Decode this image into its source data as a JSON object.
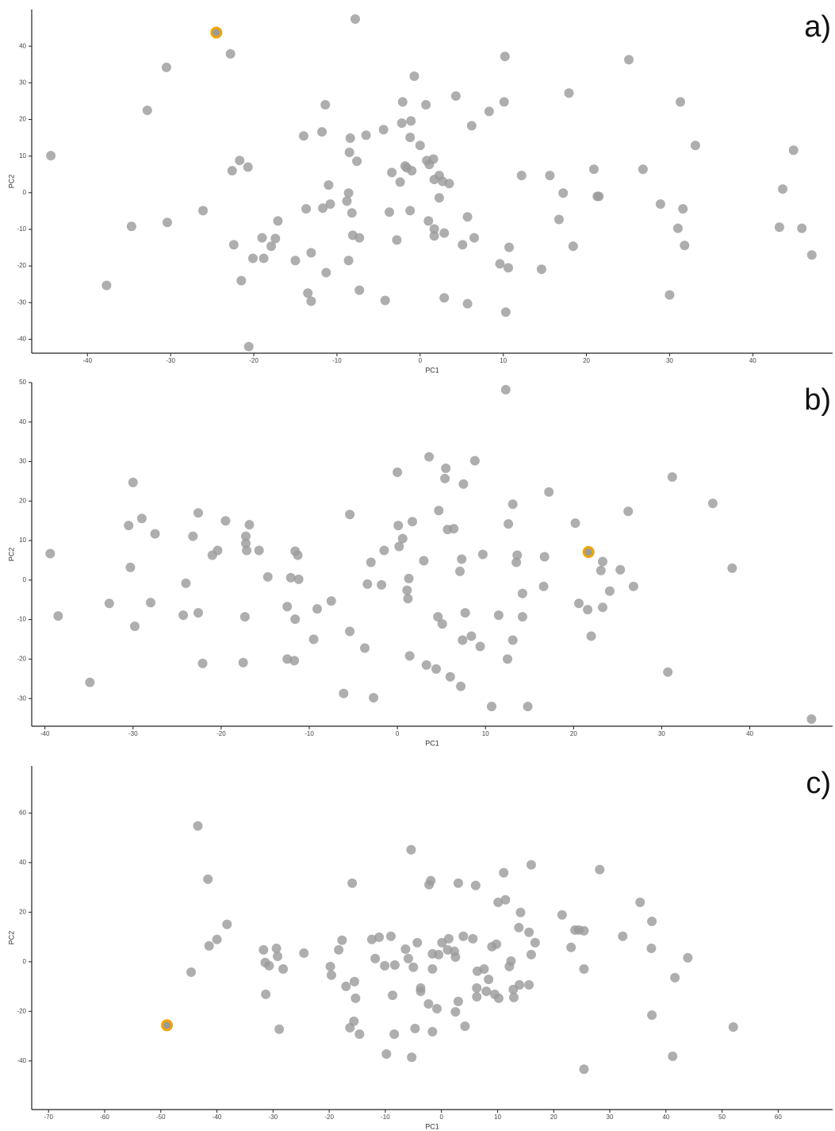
{
  "chart_data": [
    {
      "type": "scatter",
      "label": "a)",
      "x_label": "PC1",
      "y_label": "PC2",
      "xlim": [
        -46.7,
        49.6
      ],
      "ylim": [
        -43.8,
        50
      ],
      "xticks": [
        -40,
        -30,
        -20,
        -10,
        0,
        10,
        20,
        30,
        40
      ],
      "yticks": [
        -40,
        -30,
        -20,
        -10,
        0,
        10,
        20,
        30,
        40
      ],
      "series": [
        {
          "color": "#9a9a9a",
          "x": [
            -44.4,
            -37.7,
            -34.7,
            -32.8,
            -30.5,
            -30.4,
            -26.1,
            -22.8,
            -22.6,
            -22.4,
            -21.7,
            -21.5,
            -20.7,
            -20.6,
            -20.1,
            -19.0,
            -18.8,
            -17.9,
            -17.4,
            -17.1,
            -15.0,
            -14.0,
            -13.7,
            -13.5,
            -13.1,
            -13.1,
            -11.8,
            -11.7,
            -11.4,
            -11.3,
            -11.0,
            -10.8,
            -8.8,
            -8.6,
            -8.5,
            -8.4,
            -8.6,
            -8.2,
            -8.1,
            -7.8,
            -7.6,
            -7.3,
            -7.3,
            -6.5,
            -4.4,
            -4.2,
            -3.7,
            -3.4,
            -2.8,
            -2.4,
            -2.2,
            -2.1,
            -1.8,
            -1.6,
            -1.2,
            -1.1,
            -1.2,
            -1.0,
            -0.7,
            0.0,
            0.7,
            0.8,
            1.0,
            1.1,
            1.6,
            1.7,
            1.7,
            1.7,
            2.3,
            2.3,
            2.7,
            2.9,
            2.9,
            3.5,
            4.3,
            5.1,
            5.7,
            5.7,
            6.2,
            6.5,
            8.3,
            9.6,
            10.1,
            10.2,
            10.3,
            10.6,
            10.7,
            12.2,
            14.6,
            15.6,
            16.7,
            17.2,
            17.9,
            18.4,
            20.9,
            21.3,
            21.5,
            25.1,
            26.8,
            28.9,
            30.0,
            31.0,
            31.3,
            31.6,
            31.8,
            33.1,
            43.2,
            43.6,
            44.9,
            45.9,
            47.1
          ],
          "values": [
            10.1,
            -25.3,
            -9.2,
            22.5,
            34.2,
            -8.1,
            -4.9,
            37.9,
            6.0,
            -14.2,
            8.8,
            -24.0,
            7.0,
            -42.0,
            -17.9,
            -12.3,
            -17.9,
            -14.6,
            -12.5,
            -7.7,
            -18.5,
            15.5,
            -4.4,
            -27.4,
            -29.6,
            -16.4,
            16.6,
            -4.2,
            24.0,
            -21.8,
            2.1,
            -3.1,
            -2.3,
            -0.1,
            11.0,
            14.9,
            -18.5,
            -5.5,
            -11.6,
            47.4,
            8.6,
            -12.3,
            -26.6,
            15.7,
            17.2,
            -29.4,
            -5.3,
            5.5,
            -12.9,
            2.9,
            19.0,
            24.8,
            7.3,
            6.8,
            -4.9,
            19.6,
            15.1,
            6.0,
            31.8,
            12.9,
            24.0,
            8.8,
            -7.7,
            7.7,
            9.2,
            3.6,
            -9.9,
            -11.8,
            4.7,
            -1.4,
            3.1,
            -11.0,
            -28.7,
            2.5,
            26.4,
            -14.2,
            -6.6,
            -30.3,
            18.3,
            -12.3,
            22.2,
            -19.4,
            24.8,
            37.2,
            -32.6,
            -20.5,
            -14.9,
            4.7,
            -20.9,
            4.7,
            -7.3,
            -0.1,
            27.2,
            -14.6,
            6.4,
            -1.0,
            -1.0,
            36.3,
            6.4,
            -3.1,
            -27.9,
            -9.7,
            24.8,
            -4.4,
            -14.4,
            12.9,
            -9.4,
            1.0,
            11.6,
            -9.7,
            -17.0
          ]
        },
        {
          "color": "#9a9a9a",
          "edgecolor": "#f0a500",
          "x": [
            -24.5
          ],
          "values": [
            43.7
          ]
        }
      ]
    },
    {
      "type": "scatter",
      "label": "b)",
      "x_label": "PC1",
      "y_label": "PC2",
      "xlim": [
        -41.5,
        49.4
      ],
      "ylim": [
        -37,
        50
      ],
      "xticks": [
        -40,
        -30,
        -20,
        -10,
        0,
        10,
        20,
        30,
        40
      ],
      "yticks": [
        -30,
        -20,
        -10,
        0,
        10,
        20,
        30,
        40,
        50
      ],
      "series": [
        {
          "color": "#9a9a9a",
          "x": [
            -39.4,
            -38.5,
            -34.9,
            -32.7,
            -30.5,
            -30.3,
            -30.0,
            -29.8,
            -29.0,
            -28.0,
            -27.5,
            -24.3,
            -24.0,
            -23.2,
            -22.6,
            -22.6,
            -22.1,
            -21.0,
            -20.4,
            -19.5,
            -17.5,
            -17.3,
            -17.2,
            -17.2,
            -17.1,
            -16.8,
            -15.7,
            -14.7,
            -12.5,
            -12.5,
            -12.1,
            -11.7,
            -11.6,
            -11.6,
            -11.3,
            -11.2,
            -9.5,
            -9.1,
            -7.5,
            -6.1,
            -5.4,
            -5.4,
            -3.7,
            -3.4,
            -3.0,
            -2.7,
            -1.8,
            -1.5,
            0.0,
            0.1,
            0.2,
            0.6,
            1.1,
            1.2,
            1.3,
            1.4,
            1.7,
            3.0,
            3.3,
            3.6,
            4.4,
            4.6,
            4.7,
            5.1,
            5.4,
            5.5,
            5.7,
            6.0,
            6.4,
            7.1,
            7.2,
            7.3,
            7.4,
            7.5,
            7.7,
            8.4,
            8.8,
            9.4,
            9.7,
            10.7,
            11.5,
            12.3,
            12.5,
            12.6,
            13.1,
            13.1,
            13.5,
            13.6,
            14.2,
            14.2,
            14.8,
            16.6,
            16.7,
            17.2,
            20.2,
            20.6,
            21.6,
            22.0,
            23.1,
            23.3,
            23.3,
            24.1,
            25.3,
            26.2,
            26.8,
            30.7,
            31.2,
            35.8,
            38.0,
            47.0
          ],
          "values": [
            6.7,
            -9.1,
            -25.9,
            -5.9,
            13.8,
            3.2,
            24.7,
            -11.7,
            15.6,
            -5.7,
            11.7,
            -8.9,
            -0.8,
            11.1,
            17.0,
            -8.3,
            -21.1,
            6.3,
            7.5,
            15.0,
            -20.9,
            -9.3,
            11.1,
            9.3,
            7.5,
            14.0,
            7.5,
            0.8,
            -6.7,
            -20.0,
            0.6,
            -20.4,
            7.3,
            -9.9,
            6.3,
            0.2,
            -15.0,
            -7.3,
            -5.3,
            -28.7,
            -13.0,
            16.6,
            -17.2,
            -1.0,
            4.5,
            -29.8,
            -1.2,
            7.5,
            27.3,
            13.8,
            8.5,
            10.5,
            -2.6,
            -4.7,
            0.4,
            -19.2,
            14.8,
            4.9,
            -21.5,
            31.2,
            -22.5,
            -9.3,
            17.6,
            -11.1,
            25.7,
            28.3,
            12.8,
            -24.5,
            13.0,
            2.2,
            -26.9,
            5.3,
            -15.2,
            24.3,
            -8.3,
            -14.2,
            30.2,
            -16.8,
            6.5,
            -32.0,
            -8.9,
            48.2,
            -20.0,
            14.2,
            -15.2,
            19.2,
            4.5,
            6.3,
            -9.3,
            -3.4,
            -32.0,
            -1.6,
            5.9,
            22.3,
            14.4,
            -5.9,
            -7.5,
            -14.2,
            2.4,
            4.7,
            -6.9,
            -2.8,
            2.6,
            17.4,
            -1.6,
            -23.3,
            26.1,
            19.4,
            3.0,
            -35.2
          ]
        },
        {
          "color": "#9a9a9a",
          "edgecolor": "#f0a500",
          "x": [
            21.7
          ],
          "values": [
            7.1
          ]
        }
      ]
    },
    {
      "type": "scatter",
      "label": "c)",
      "x_label": "PC1",
      "y_label": "PC2",
      "xlim": [
        -73,
        69.7
      ],
      "ylim": [
        -59.6,
        79
      ],
      "xticks": [
        -70,
        -60,
        -50,
        -40,
        -30,
        -20,
        -10,
        0,
        10,
        20,
        30,
        40,
        50,
        60
      ],
      "yticks": [
        -40,
        -20,
        0,
        20,
        40,
        60
      ],
      "series": [
        {
          "color": "#9a9a9a",
          "x": [
            -44.6,
            -43.4,
            -41.6,
            -41.4,
            -40.0,
            -38.2,
            -31.7,
            -31.4,
            -31.3,
            -30.7,
            -29.4,
            -29.2,
            -28.9,
            -28.2,
            -24.5,
            -19.8,
            -19.6,
            -18.3,
            -17.7,
            -17.0,
            -16.3,
            -15.9,
            -15.6,
            -15.5,
            -15.3,
            -14.6,
            -12.4,
            -11.8,
            -11.1,
            -10.1,
            -9.8,
            -9.0,
            -8.7,
            -8.4,
            -8.3,
            -6.4,
            -5.9,
            -5.4,
            -5.3,
            -5.0,
            -4.7,
            -4.3,
            -3.7,
            -3.7,
            -2.3,
            -2.2,
            -1.9,
            -1.6,
            -1.6,
            -1.6,
            -0.8,
            -0.5,
            0.1,
            1.1,
            1.3,
            2.3,
            2.5,
            2.5,
            3.0,
            3.0,
            3.9,
            4.2,
            5.6,
            6.1,
            6.3,
            6.3,
            6.4,
            7.6,
            8.0,
            8.4,
            9.0,
            9.5,
            9.8,
            10.1,
            10.2,
            11.1,
            11.4,
            12.1,
            12.4,
            12.8,
            12.9,
            13.8,
            13.9,
            14.1,
            15.6,
            15.6,
            16.0,
            16.0,
            16.7,
            21.5,
            23.1,
            23.8,
            24.5,
            25.4,
            25.4,
            25.4,
            28.2,
            32.3,
            35.4,
            37.4,
            37.5,
            37.5,
            41.2,
            41.6,
            43.9,
            52.0
          ],
          "values": [
            -4.2,
            54.8,
            33.3,
            6.4,
            9.0,
            15.1,
            4.8,
            -0.3,
            -13.1,
            -1.6,
            5.4,
            2.2,
            -27.2,
            -2.9,
            3.5,
            -1.9,
            -5.4,
            4.8,
            8.7,
            -9.9,
            -26.6,
            31.7,
            -24.0,
            -8.0,
            -14.7,
            -29.2,
            9.0,
            1.3,
            9.9,
            -1.6,
            -37.2,
            10.3,
            -13.5,
            -29.2,
            -1.3,
            5.1,
            1.3,
            45.2,
            -38.5,
            -2.2,
            -26.9,
            7.7,
            -10.6,
            -11.9,
            -17.0,
            31.1,
            32.7,
            -28.2,
            -2.9,
            3.2,
            -18.9,
            2.9,
            7.7,
            4.8,
            9.3,
            4.2,
            1.9,
            -20.2,
            31.7,
            -16.0,
            10.3,
            -26.0,
            9.3,
            30.8,
            -10.6,
            -14.1,
            -3.8,
            -2.9,
            -11.9,
            -7.1,
            6.1,
            -13.1,
            7.1,
            24.0,
            -14.7,
            35.9,
            25.0,
            -1.9,
            0.3,
            -11.2,
            -14.4,
            13.8,
            -9.3,
            19.9,
            11.9,
            -9.3,
            39.1,
            2.9,
            7.7,
            18.9,
            5.8,
            12.8,
            12.8,
            12.5,
            -2.9,
            -43.3,
            37.2,
            10.3,
            24.0,
            5.4,
            16.3,
            -21.5,
            -38.1,
            -6.4,
            1.6,
            -26.3
          ]
        },
        {
          "color": "#9a9a9a",
          "edgecolor": "#f0a500",
          "x": [
            -48.9
          ],
          "values": [
            -25.6
          ]
        }
      ]
    }
  ]
}
